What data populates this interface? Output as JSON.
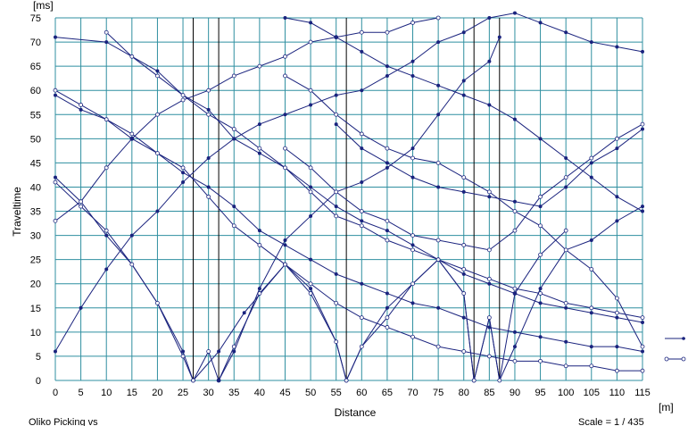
{
  "chart_data": {
    "type": "line",
    "title": "",
    "xlabel": "Distance",
    "ylabel": "Traveltime",
    "x_unit": "[m]",
    "y_unit": "[ms]",
    "xlim": [
      0,
      115
    ],
    "ylim": [
      0,
      75
    ],
    "x_ticks": [
      0,
      5,
      10,
      15,
      20,
      25,
      30,
      35,
      40,
      45,
      50,
      55,
      60,
      65,
      70,
      75,
      80,
      85,
      90,
      95,
      100,
      105,
      110,
      115
    ],
    "y_ticks": [
      0,
      5,
      10,
      15,
      20,
      25,
      30,
      35,
      40,
      45,
      50,
      55,
      60,
      65,
      70,
      75
    ],
    "grid": true,
    "shot_markers": [
      27,
      32,
      57,
      82,
      87
    ],
    "colors": {
      "grid": "#2f8fa0",
      "shot_line": "#000000",
      "series": "#1a237e"
    },
    "legend": {
      "placement": "right",
      "entries": [
        {
          "marker": "dot",
          "label": ""
        },
        {
          "marker": "circle",
          "label": ""
        }
      ]
    },
    "footer_left": "Oliko Picking vs",
    "scale": "Scale = 1 / 435",
    "series": [
      {
        "marker": "dot",
        "x": [
          0,
          5,
          10,
          15,
          20,
          25,
          27
        ],
        "y": [
          42,
          37,
          30,
          24,
          16,
          6,
          0
        ]
      },
      {
        "marker": "circle",
        "x": [
          0,
          5,
          10,
          15,
          20,
          25,
          27
        ],
        "y": [
          41,
          36,
          31,
          24,
          16,
          5,
          0
        ]
      },
      {
        "marker": "dot",
        "x": [
          27,
          32,
          37,
          45,
          50,
          55,
          57
        ],
        "y": [
          0,
          6,
          14,
          24,
          19,
          8,
          0
        ]
      },
      {
        "marker": "circle",
        "x": [
          27,
          30,
          32,
          35,
          40,
          45,
          50,
          55,
          57
        ],
        "y": [
          0,
          6,
          0,
          7,
          18,
          24,
          18,
          8,
          0
        ]
      },
      {
        "marker": "dot",
        "x": [
          32,
          35,
          40,
          45,
          50,
          55,
          60,
          65,
          70,
          75,
          80,
          85,
          87
        ],
        "y": [
          0,
          6,
          19,
          29,
          34,
          39,
          41,
          44,
          48,
          55,
          62,
          66,
          71
        ]
      },
      {
        "marker": "dot",
        "x": [
          57,
          60,
          65,
          70,
          75,
          80,
          82
        ],
        "y": [
          0,
          7,
          15,
          20,
          25,
          18,
          0
        ]
      },
      {
        "marker": "circle",
        "x": [
          57,
          60,
          65,
          70,
          75,
          80,
          82
        ],
        "y": [
          0,
          7,
          13,
          20,
          25,
          18,
          0
        ]
      },
      {
        "marker": "dot",
        "x": [
          82,
          85,
          87,
          90,
          95,
          100,
          105,
          110,
          115
        ],
        "y": [
          0,
          13,
          0,
          7,
          19,
          27,
          29,
          33,
          36
        ]
      },
      {
        "marker": "circle",
        "x": [
          82,
          85,
          87,
          90,
          95,
          100
        ],
        "y": [
          0,
          13,
          0,
          18,
          26,
          31
        ]
      },
      {
        "marker": "dot",
        "x": [
          0,
          5,
          10,
          15,
          20,
          25,
          30,
          35,
          40,
          45,
          50,
          55,
          60,
          65,
          70,
          75,
          80,
          85,
          90,
          95,
          100,
          105,
          110,
          115
        ],
        "y": [
          6,
          15,
          23,
          30,
          35,
          41,
          46,
          50,
          53,
          55,
          57,
          59,
          60,
          63,
          66,
          70,
          72,
          75,
          76,
          74,
          72,
          70,
          69,
          68
        ]
      },
      {
        "marker": "circle",
        "x": [
          0,
          5,
          10,
          15,
          20,
          25,
          30,
          35,
          40,
          45,
          50,
          55,
          60,
          65,
          70,
          75
        ],
        "y": [
          33,
          37,
          44,
          50,
          55,
          58,
          60,
          63,
          65,
          67,
          70,
          71,
          72,
          72,
          74,
          75
        ]
      },
      {
        "marker": "dot",
        "x": [
          0,
          5,
          10,
          15,
          20,
          25,
          30,
          35,
          40,
          45,
          50,
          55,
          60,
          65,
          70,
          75,
          80,
          85,
          90,
          95,
          100,
          105,
          110,
          115
        ],
        "y": [
          59,
          56,
          54,
          50,
          47,
          43,
          40,
          36,
          31,
          28,
          25,
          22,
          20,
          18,
          16,
          15,
          13,
          11,
          10,
          9,
          8,
          7,
          7,
          6
        ]
      },
      {
        "marker": "circle",
        "x": [
          0,
          5,
          10,
          15,
          20,
          25,
          30,
          35,
          40,
          45,
          50,
          55,
          60,
          65,
          70,
          75,
          80,
          85,
          90,
          95,
          100,
          105,
          110,
          115
        ],
        "y": [
          60,
          57,
          54,
          51,
          47,
          44,
          38,
          32,
          28,
          24,
          20,
          16,
          13,
          11,
          9,
          7,
          6,
          5,
          4,
          4,
          3,
          3,
          2,
          2
        ]
      },
      {
        "marker": "dot",
        "x": [
          0,
          10,
          20,
          25,
          30,
          35,
          40,
          45,
          50,
          55,
          60,
          65,
          70,
          75,
          80,
          85,
          90,
          95,
          100,
          105,
          110,
          115
        ],
        "y": [
          71,
          70,
          64,
          59,
          56,
          50,
          47,
          44,
          40,
          36,
          33,
          31,
          28,
          25,
          22,
          20,
          18,
          16,
          15,
          14,
          13,
          12
        ]
      },
      {
        "marker": "circle",
        "x": [
          10,
          15,
          20,
          25,
          30,
          35,
          40,
          45,
          50,
          55,
          60,
          65,
          70,
          75,
          80,
          85,
          90,
          95,
          100,
          105,
          110,
          115
        ],
        "y": [
          72,
          67,
          63,
          59,
          55,
          52,
          48,
          44,
          39,
          34,
          32,
          29,
          27,
          25,
          23,
          21,
          19,
          18,
          16,
          15,
          14,
          13
        ]
      },
      {
        "marker": "dot",
        "x": [
          45,
          50,
          55,
          60,
          65,
          70,
          75,
          80,
          85,
          90,
          95,
          100,
          105,
          110,
          115
        ],
        "y": [
          75,
          74,
          71,
          68,
          65,
          63,
          61,
          59,
          57,
          54,
          50,
          46,
          42,
          38,
          35
        ]
      },
      {
        "marker": "circle",
        "x": [
          45,
          50,
          55,
          60,
          65,
          70,
          75,
          80,
          85,
          90,
          95,
          100,
          105,
          110,
          115
        ],
        "y": [
          63,
          60,
          55,
          51,
          48,
          46,
          45,
          42,
          39,
          35,
          32,
          27,
          23,
          17,
          7
        ]
      },
      {
        "marker": "dot",
        "x": [
          55,
          60,
          65,
          70,
          75,
          80,
          85,
          90,
          95,
          100,
          105,
          110,
          115
        ],
        "y": [
          53,
          48,
          45,
          42,
          40,
          39,
          38,
          37,
          36,
          40,
          45,
          48,
          52
        ]
      },
      {
        "marker": "circle",
        "x": [
          45,
          50,
          55,
          60,
          65,
          70,
          75,
          80,
          85,
          90,
          95,
          100,
          105,
          110,
          115
        ],
        "y": [
          48,
          44,
          39,
          35,
          33,
          30,
          29,
          28,
          27,
          31,
          38,
          42,
          46,
          50,
          53
        ]
      }
    ]
  }
}
